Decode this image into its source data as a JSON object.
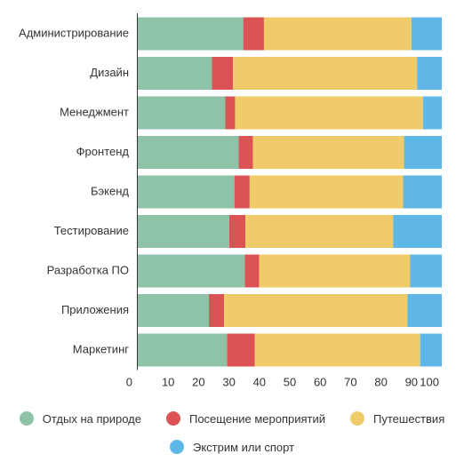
{
  "chart_data": {
    "type": "bar",
    "orientation": "horizontal",
    "stacked": true,
    "title": "",
    "xlabel": "",
    "ylabel": "",
    "xlim": [
      0,
      100
    ],
    "x_ticks": [
      "0",
      "10",
      "20",
      "30",
      "40",
      "50",
      "60",
      "70",
      "80",
      "90",
      "100"
    ],
    "categories": [
      "Администрирование",
      "Дизайн",
      "Менеджмент",
      "Фронтенд",
      "Бэкенд",
      "Тестирование",
      "Разработка ПО",
      "Приложения",
      "Маркетинг"
    ],
    "series": [
      {
        "name": "Отдых на природе",
        "color": "#8ec3a7",
        "values": [
          34.7,
          24.4,
          28.8,
          33.2,
          31.8,
          30.1,
          35.2,
          23.4,
          29.4
        ]
      },
      {
        "name": "Посещение мероприятий",
        "color": "#dc5356",
        "values": [
          6.8,
          6.9,
          3.2,
          4.7,
          5.0,
          5.3,
          4.7,
          5.0,
          9.1
        ]
      },
      {
        "name": "Путешествия",
        "color": "#f0cb69",
        "values": [
          48.5,
          60.6,
          61.8,
          49.7,
          50.5,
          48.6,
          49.7,
          60.3,
          54.4
        ]
      },
      {
        "name": "Экстрим или спорт",
        "color": "#5fb7e5",
        "values": [
          10.0,
          8.1,
          6.2,
          12.4,
          12.7,
          16.0,
          10.4,
          11.3,
          7.1
        ]
      }
    ],
    "grid": false,
    "legend_position": "bottom"
  }
}
